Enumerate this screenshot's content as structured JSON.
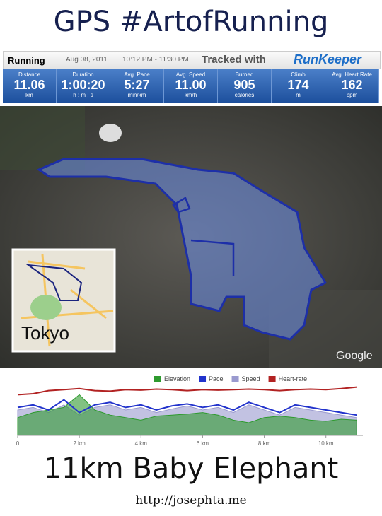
{
  "header": {
    "title": "GPS #ArtofRunning",
    "activity": "Running",
    "date": "Aug 08, 2011",
    "time": "10:12 PM - 11:30 PM",
    "tracked": "Tracked with",
    "brand": "RunKeeper"
  },
  "stats": [
    {
      "label": "Distance",
      "value": "11.06",
      "unit": "km"
    },
    {
      "label": "Duration",
      "value": "1:00:20",
      "unit": "h : m : s"
    },
    {
      "label": "Avg. Pace",
      "value": "5:27",
      "unit": "min/km"
    },
    {
      "label": "Avg. Speed",
      "value": "11.00",
      "unit": "km/h"
    },
    {
      "label": "Burned",
      "value": "905",
      "unit": "calories"
    },
    {
      "label": "Climb",
      "value": "174",
      "unit": "m"
    },
    {
      "label": "Avg. Heart Rate",
      "value": "162",
      "unit": "bpm"
    }
  ],
  "map": {
    "inset_label": "Tokyo",
    "credit": "Google"
  },
  "chart_data": {
    "type": "line",
    "x": [
      0,
      0.5,
      1,
      1.5,
      2,
      2.5,
      3,
      3.5,
      4,
      4.5,
      5,
      5.5,
      6,
      6.5,
      7,
      7.5,
      8,
      8.5,
      9,
      9.5,
      10,
      10.5,
      11
    ],
    "series": [
      {
        "name": "Elevation",
        "color": "#2e9a2e",
        "area": true,
        "values": [
          35,
          45,
          50,
          55,
          80,
          50,
          40,
          35,
          30,
          38,
          40,
          42,
          45,
          40,
          30,
          25,
          35,
          38,
          35,
          30,
          28,
          32,
          30
        ]
      },
      {
        "name": "Pace",
        "color": "#2233cc",
        "area": false,
        "values": [
          55,
          60,
          50,
          70,
          45,
          60,
          65,
          55,
          60,
          50,
          58,
          62,
          55,
          60,
          50,
          65,
          55,
          45,
          60,
          55,
          50,
          45,
          40
        ]
      },
      {
        "name": "Speed",
        "color": "#9a9acf",
        "area": true,
        "values": [
          50,
          55,
          45,
          60,
          40,
          55,
          60,
          50,
          55,
          45,
          52,
          58,
          50,
          55,
          45,
          60,
          50,
          40,
          55,
          50,
          45,
          40,
          35
        ]
      },
      {
        "name": "Heart-rate",
        "color": "#b22222",
        "area": false,
        "values": [
          80,
          82,
          88,
          90,
          92,
          88,
          87,
          90,
          89,
          91,
          90,
          88,
          90,
          89,
          90,
          91,
          90,
          88,
          90,
          91,
          90,
          92,
          95
        ]
      }
    ],
    "xlim": [
      0,
      11.2
    ],
    "ylim": [
      0,
      100
    ],
    "xticks": [
      0,
      {
        "value": 2,
        "label": "2 km"
      },
      {
        "value": 4,
        "label": "4 km"
      },
      {
        "value": 6,
        "label": "6 km"
      },
      {
        "value": 8,
        "label": "8 km"
      },
      {
        "value": 10,
        "label": "10 km"
      }
    ]
  },
  "footer": {
    "title": "11km Baby Elephant",
    "url": "http://josephta.me"
  }
}
